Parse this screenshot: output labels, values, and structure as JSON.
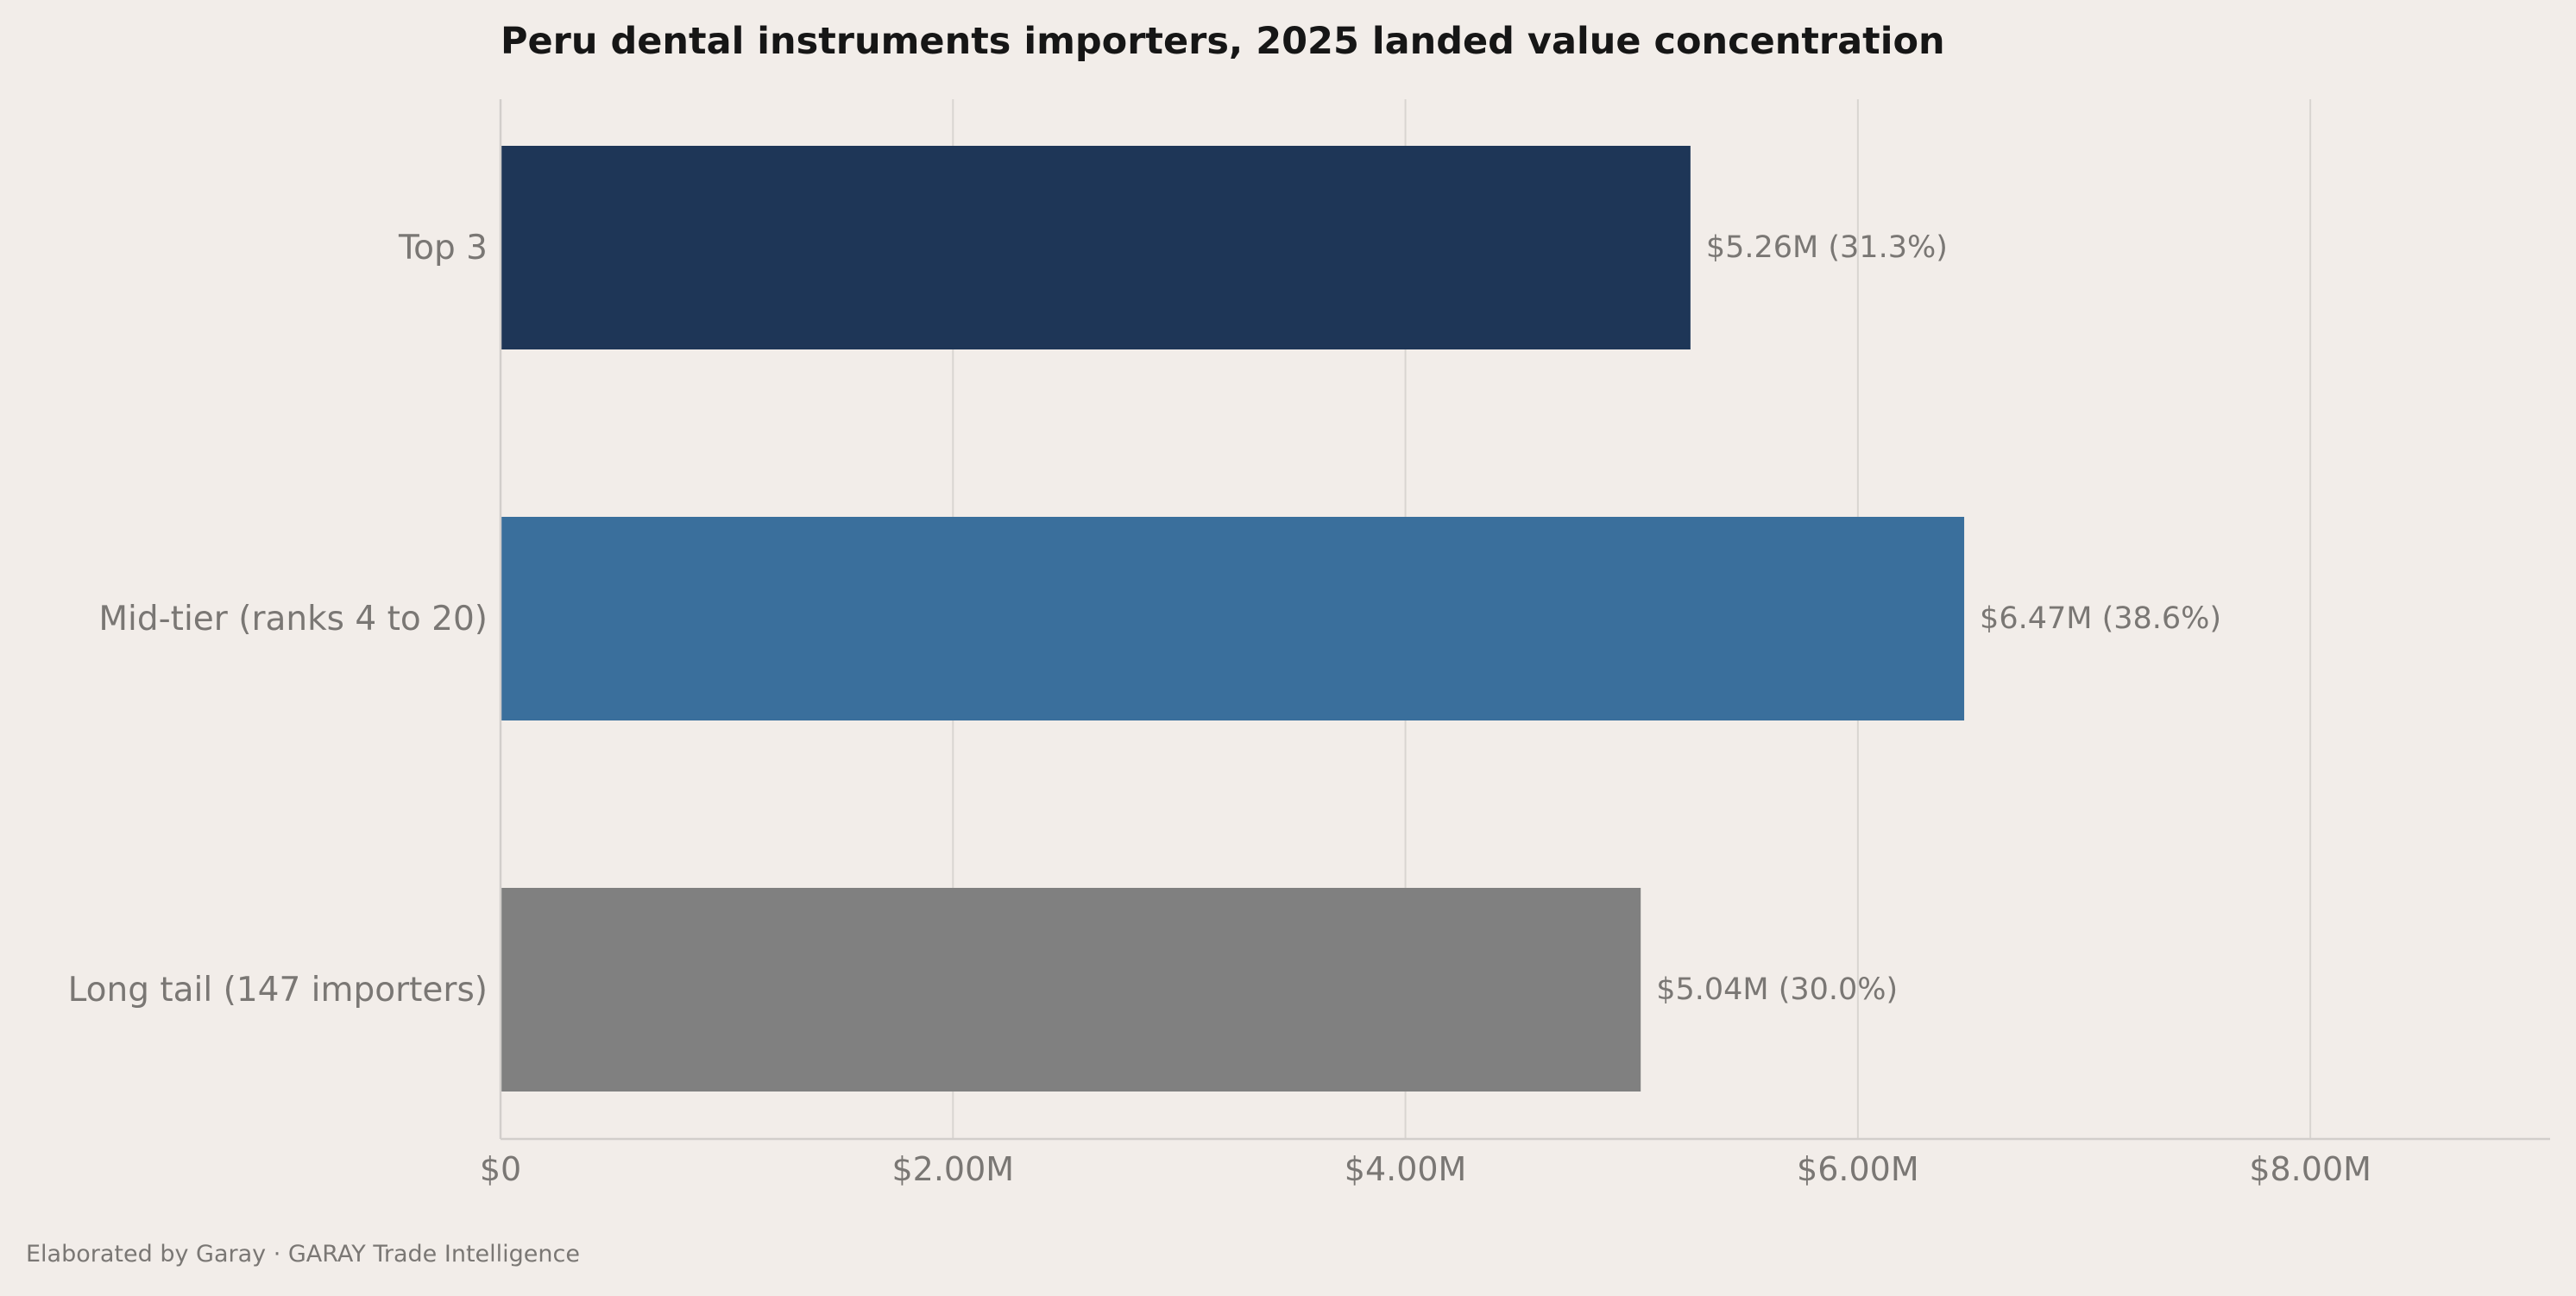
{
  "chart_data": {
    "type": "bar",
    "orientation": "horizontal",
    "title": "Peru dental instruments importers, 2025 landed value concentration",
    "xlabel": "",
    "ylabel": "",
    "xlim": [
      0,
      9060000
    ],
    "x_ticks": [
      {
        "value": 0,
        "label": "$0"
      },
      {
        "value": 2000000,
        "label": "$2.00M"
      },
      {
        "value": 4000000,
        "label": "$4.00M"
      },
      {
        "value": 6000000,
        "label": "$6.00M"
      },
      {
        "value": 8000000,
        "label": "$8.00M"
      }
    ],
    "grid": "vertical",
    "categories": [
      "Top 3",
      "Mid-tier (ranks 4 to 20)",
      "Long tail (147 importers)"
    ],
    "values": [
      5260000,
      6470000,
      5040000
    ],
    "data_labels": [
      "$5.26M  (31.3%)",
      "$6.47M  (38.6%)",
      "$5.04M  (30.0%)"
    ],
    "colors": [
      "#1e3657",
      "#3a6f9c",
      "#808080"
    ]
  },
  "footer": {
    "credit": "Elaborated by Garay  ·  GARAY Trade Intelligence"
  },
  "style": {
    "background": "#f2ede9",
    "grid_color": "#d9d5d1",
    "axis_color": "#d2cecb",
    "tick_label_color": "#7a7774",
    "title_color": "#161616",
    "data_label_color": "#7a7774",
    "footer_color": "#7a7774"
  }
}
